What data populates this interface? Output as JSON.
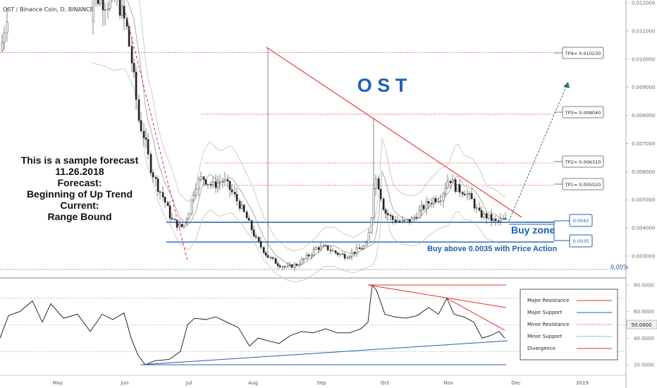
{
  "header": {
    "title": "OST / Binance Coin, D, BINANCE"
  },
  "big_label": "O S T",
  "forecast_lines": [
    "This is a sample forecast",
    "11.26.2018",
    "Forecast:",
    "Beginning of Up Trend",
    "Current:",
    "Range Bound"
  ],
  "annotations": {
    "buy_zone": "Buy zone",
    "buy_above": "Buy above 0.0035 with Price Action",
    "fib": "0.00%"
  },
  "targets": [
    {
      "label": "TP4= 0.010230",
      "value": 0.01023
    },
    {
      "label": "TP3= 0.008040",
      "value": 0.00804
    },
    {
      "label": "TP2= 0.006310",
      "value": 0.00631
    },
    {
      "label": "TP1= 0.005520",
      "value": 0.00552
    }
  ],
  "zones": [
    {
      "label": "0.0042",
      "value": 0.0042
    },
    {
      "label": "0.0035",
      "value": 0.0035
    }
  ],
  "legend": [
    {
      "label": "Major Resistance",
      "color": "#e03030",
      "style": "solid"
    },
    {
      "label": "Major Support",
      "color": "#1f5fb4",
      "style": "solid"
    },
    {
      "label": "Minor Resistance",
      "color": "#e03030",
      "style": "dotted"
    },
    {
      "label": "Minor Support",
      "color": "#1f5fb4",
      "style": "dotted"
    },
    {
      "label": "Divergence",
      "color": "#e03030",
      "style": "solid"
    }
  ],
  "colors": {
    "bull": "#ffffff",
    "bear": "#222222",
    "resistance": "#e03030",
    "support": "#1f5fb4",
    "arrow": "#2e7d4f",
    "title_blue": "#1f5fb4"
  },
  "chart_data": {
    "type": "candlestick",
    "title": "OST / Binance Coin, D, BINANCE",
    "price_axis": {
      "ticks": [
        "0.012000",
        "0.011000",
        "0.010000",
        "0.009000",
        "0.008000",
        "0.007000",
        "0.006000",
        "0.005000",
        "0.004000",
        "0.003000"
      ],
      "ylim": [
        0.00235,
        0.0122
      ]
    },
    "time_axis": {
      "ticks": [
        "May",
        "Jun",
        "Jul",
        "Aug",
        "Sep",
        "Oct",
        "Nov",
        "Dec",
        "2019"
      ]
    },
    "resistance_line": {
      "from": {
        "date": "2018-08-02",
        "price": 0.01035
      },
      "to": {
        "date": "2018-11-30",
        "price": 0.0042
      }
    },
    "horizontal_levels": [
      0.01023,
      0.00804,
      0.00631,
      0.00552,
      0.0042,
      0.0035
    ],
    "close_series": [
      {
        "date": "2018-05",
        "close": 0.0115
      },
      {
        "date": "2018-06",
        "close": 0.007
      },
      {
        "date": "2018-07",
        "close": 0.0045
      },
      {
        "date": "2018-08",
        "close": 0.003
      },
      {
        "date": "2018-09",
        "close": 0.0033
      },
      {
        "date": "2018-10",
        "close": 0.0042
      },
      {
        "date": "2018-11",
        "close": 0.0045
      },
      {
        "date": "2018-11-26",
        "close": 0.0042
      }
    ],
    "indicator": {
      "name": "RSI",
      "ticks": [
        "80.0000",
        "60.0000",
        "50.0000",
        "40.0000",
        "20.0000"
      ],
      "current": "50.0000",
      "ylim": [
        16,
        84
      ]
    }
  }
}
